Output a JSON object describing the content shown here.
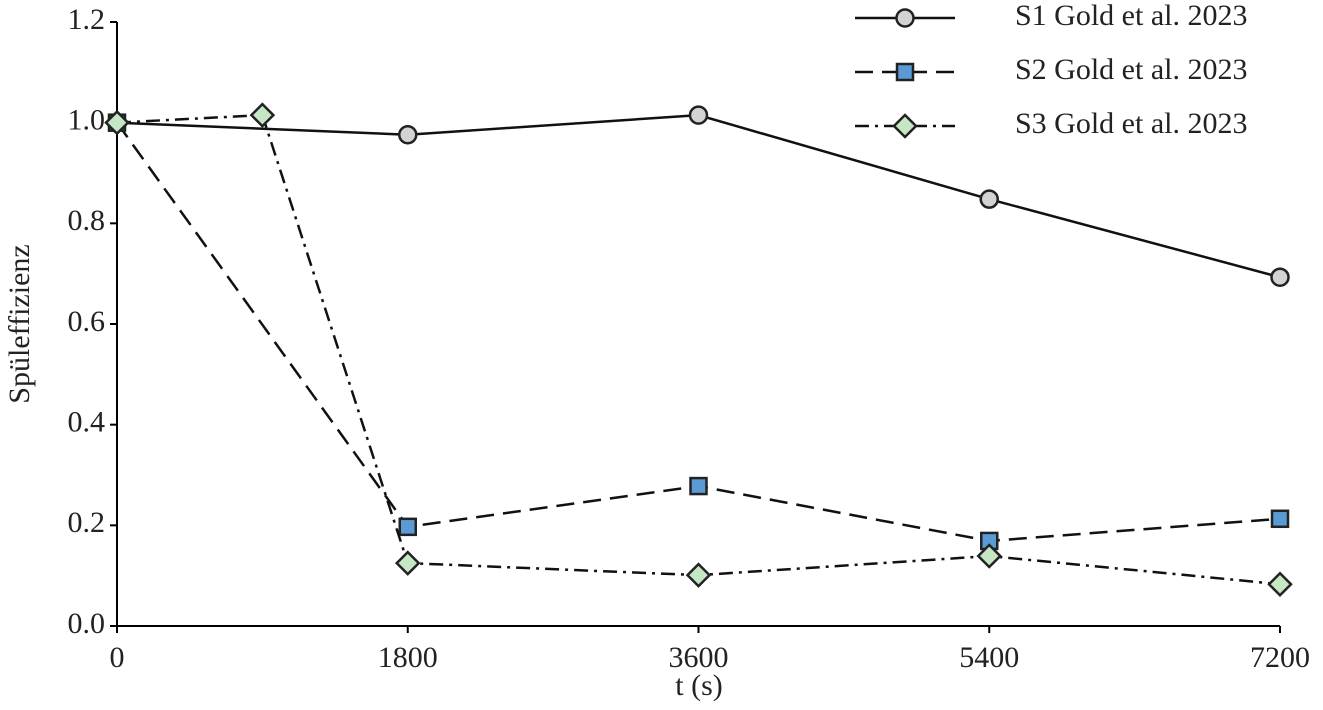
{
  "chart_data": {
    "type": "line",
    "x_label": "t (s)",
    "y_label": "Spüleffizienz",
    "xlim": [
      0,
      7200
    ],
    "xticks": [
      0,
      1800,
      3600,
      5400,
      7200
    ],
    "ylim": [
      0,
      1.2
    ],
    "yticks": [
      {
        "value": 0,
        "label": "0.0"
      },
      0.2,
      0.4,
      0.6,
      0.8,
      {
        "value": 1,
        "label": "1.0"
      },
      1.2
    ],
    "legend": "upper right",
    "series": [
      {
        "name": "S1 Gold et al. 2023",
        "color": "#d3d3d3",
        "marker": "circle",
        "dash": "solid",
        "x": [
          0,
          1800,
          3600,
          5400,
          7200
        ],
        "values": [
          1.0,
          0.976,
          1.015,
          0.848,
          0.693
        ]
      },
      {
        "name": "S2 Gold et al. 2023",
        "color": "#5b9bd5",
        "marker": "square",
        "dash": "dashed",
        "x": [
          0,
          1800,
          3600,
          5400,
          7200
        ],
        "values": [
          1.0,
          0.197,
          0.278,
          0.169,
          0.213
        ]
      },
      {
        "name": "S3 Gold et al. 2023",
        "color": "#c6e7c6",
        "marker": "diamond",
        "dash": "dashdot",
        "x": [
          0,
          900,
          1800,
          3600,
          5400,
          7200
        ],
        "values": [
          1.0,
          1.015,
          0.125,
          0.101,
          0.139,
          0.083
        ]
      }
    ]
  }
}
